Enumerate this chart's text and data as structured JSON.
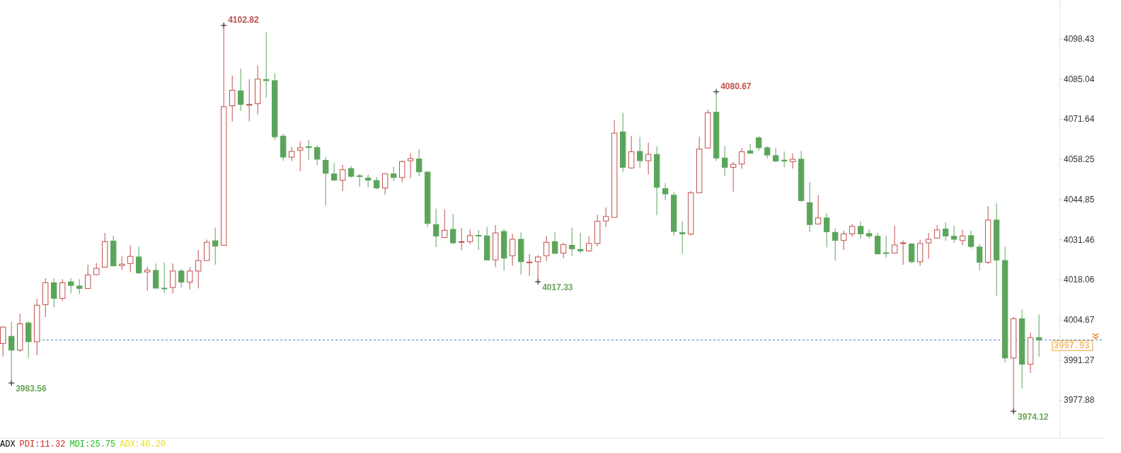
{
  "chart_data": {
    "type": "candlestick",
    "categories": [
      null,
      null,
      null,
      null,
      null,
      null,
      null,
      null,
      null,
      null,
      null,
      null,
      null,
      null,
      null,
      null,
      null,
      null,
      null,
      null,
      null,
      null,
      null,
      null,
      null,
      null,
      null,
      null,
      null,
      null,
      null,
      null,
      null,
      null,
      null,
      null,
      null,
      null,
      null,
      null,
      null,
      null,
      null,
      null,
      null,
      null,
      null,
      null,
      null,
      null,
      null,
      null,
      null,
      null,
      null,
      null,
      null,
      null,
      null,
      null,
      null,
      null,
      null,
      null,
      null,
      null,
      null,
      null,
      null,
      null,
      null,
      null,
      null,
      null,
      null,
      null,
      null,
      null,
      null,
      null,
      null,
      null,
      null,
      null,
      null,
      null,
      null,
      null,
      null,
      null,
      null,
      null,
      null,
      null,
      null,
      null,
      null,
      null,
      null,
      null,
      null,
      null,
      null,
      null,
      null,
      null,
      null,
      null,
      null,
      null,
      null,
      null,
      null,
      null,
      null,
      null,
      null,
      null,
      null,
      null,
      null,
      null,
      null
    ],
    "ohlc": [
      [
        3996.7,
        4002.4,
        3992.4,
        4002.2
      ],
      [
        3999.1,
        4004.0,
        3983.56,
        3994.5
      ],
      [
        3994.5,
        4006.7,
        3993.9,
        4003.3
      ],
      [
        4003.6,
        4004.2,
        3991.9,
        3997.3
      ],
      [
        3997.3,
        4011.6,
        3992.8,
        4009.5
      ],
      [
        4009.7,
        4018.5,
        4005.6,
        4017.0
      ],
      [
        4017.0,
        4018.5,
        4008.7,
        4011.8
      ],
      [
        4011.8,
        4018.2,
        4010.9,
        4017.0
      ],
      [
        4017.3,
        4018.5,
        4013.4,
        4016.1
      ],
      [
        4015.9,
        4018.2,
        4013.2,
        4015.1
      ],
      [
        4015.1,
        4023.0,
        4015.1,
        4019.6
      ],
      [
        4019.7,
        4023.6,
        4019.5,
        4021.8
      ],
      [
        4022.2,
        4033.6,
        4022.2,
        4030.7
      ],
      [
        4030.9,
        4032.7,
        4022.6,
        4022.6
      ],
      [
        4022.7,
        4025.8,
        4021.3,
        4023.2
      ],
      [
        4023.4,
        4029.5,
        4020.5,
        4025.8
      ],
      [
        4025.6,
        4029.1,
        4019.9,
        4020.3
      ],
      [
        4020.6,
        4022.4,
        4014.4,
        4021.2
      ],
      [
        4021.1,
        4023.4,
        4015.2,
        4015.2
      ],
      [
        4015.2,
        4023.8,
        4013.6,
        4015.0
      ],
      [
        4015.4,
        4023.4,
        4013.4,
        4020.9
      ],
      [
        4020.9,
        4021.6,
        4015.4,
        4017.2
      ],
      [
        4017.2,
        4022.2,
        4014.7,
        4020.9
      ],
      [
        4020.9,
        4027.9,
        4015.1,
        4024.4
      ],
      [
        4024.4,
        4031.4,
        4024.4,
        4030.5
      ],
      [
        4031.0,
        4035.4,
        4023.0,
        4029.2
      ],
      [
        4029.5,
        4102.82,
        4029.5,
        4075.7
      ],
      [
        4076.0,
        4086.1,
        4070.8,
        4081.2
      ],
      [
        4081.0,
        4088.4,
        4074.3,
        4076.5
      ],
      [
        4076.2,
        4084.9,
        4070.8,
        4076.5
      ],
      [
        4076.7,
        4089.5,
        4073.2,
        4084.9
      ],
      [
        4084.8,
        4100.6,
        4078.7,
        4084.4
      ],
      [
        4084.4,
        4086.9,
        4064.7,
        4065.7
      ],
      [
        4065.9,
        4066.7,
        4057.7,
        4058.9
      ],
      [
        4058.9,
        4062.3,
        4057.6,
        4060.8
      ],
      [
        4061.2,
        4064.2,
        4054.2,
        4062.0
      ],
      [
        4062.4,
        4064.7,
        4058.0,
        4062.1
      ],
      [
        4062.1,
        4062.9,
        4056.3,
        4058.2
      ],
      [
        4057.8,
        4058.9,
        4042.7,
        4053.5
      ],
      [
        4053.3,
        4056.9,
        4051.2,
        4051.2
      ],
      [
        4051.2,
        4056.3,
        4047.6,
        4054.7
      ],
      [
        4055.1,
        4055.9,
        4052.0,
        4052.5
      ],
      [
        4052.7,
        4053.3,
        4049.0,
        4052.4
      ],
      [
        4051.9,
        4053.1,
        4048.8,
        4051.2
      ],
      [
        4051.1,
        4052.3,
        4048.2,
        4048.6
      ],
      [
        4048.6,
        4053.5,
        4046.4,
        4053.3
      ],
      [
        4053.3,
        4055.7,
        4050.9,
        4052.1
      ],
      [
        4052.1,
        4057.8,
        4050.6,
        4057.4
      ],
      [
        4057.7,
        4060.2,
        4051.9,
        4058.4
      ],
      [
        4058.3,
        4061.6,
        4052.5,
        4054.0
      ],
      [
        4053.9,
        4054.3,
        4035.6,
        4036.8
      ],
      [
        4036.4,
        4041.7,
        4028.9,
        4032.6
      ],
      [
        4032.1,
        4041.5,
        4031.9,
        4034.5
      ],
      [
        4034.8,
        4039.9,
        4029.9,
        4030.3
      ],
      [
        4030.5,
        4035.2,
        4027.9,
        4030.7
      ],
      [
        4030.7,
        4034.8,
        4029.9,
        4032.7
      ],
      [
        4032.8,
        4034.6,
        4027.9,
        4032.6
      ],
      [
        4032.6,
        4035.6,
        4024.6,
        4024.6
      ],
      [
        4024.6,
        4036.2,
        4022.2,
        4033.6
      ],
      [
        4034.1,
        4034.9,
        4021.1,
        4025.2
      ],
      [
        4026.0,
        4033.3,
        4022.7,
        4031.5
      ],
      [
        4031.5,
        4033.8,
        4019.7,
        4024.0
      ],
      [
        4023.8,
        4026.6,
        4019.3,
        4023.9
      ],
      [
        4024.0,
        4026.2,
        4017.33,
        4025.6
      ],
      [
        4026.0,
        4032.6,
        4024.2,
        4030.5
      ],
      [
        4030.7,
        4033.8,
        4026.6,
        4026.8
      ],
      [
        4026.9,
        4030.3,
        4025.2,
        4029.7
      ],
      [
        4029.5,
        4035.4,
        4026.0,
        4028.3
      ],
      [
        4028.1,
        4033.6,
        4026.8,
        4027.6
      ],
      [
        4027.6,
        4032.5,
        4027.4,
        4030.1
      ],
      [
        4030.1,
        4039.7,
        4029.1,
        4037.5
      ],
      [
        4037.6,
        4042.1,
        4035.6,
        4039.1
      ],
      [
        4038.8,
        4071.2,
        4038.8,
        4066.9
      ],
      [
        4067.3,
        4073.7,
        4053.9,
        4055.5
      ],
      [
        4055.3,
        4065.9,
        4055.0,
        4060.7
      ],
      [
        4060.8,
        4065.6,
        4055.3,
        4057.7
      ],
      [
        4057.7,
        4063.7,
        4053.1,
        4059.8
      ],
      [
        4059.8,
        4062.5,
        4039.5,
        4048.8
      ],
      [
        4048.4,
        4050.2,
        4044.5,
        4046.6
      ],
      [
        4046.2,
        4047.4,
        4032.7,
        4034.1
      ],
      [
        4033.7,
        4037.6,
        4026.6,
        4033.3
      ],
      [
        4033.2,
        4047.6,
        4032.7,
        4047.0
      ],
      [
        4047.0,
        4065.7,
        4047.0,
        4061.6
      ],
      [
        4061.9,
        4074.7,
        4061.9,
        4073.7
      ],
      [
        4073.9,
        4080.67,
        4057.6,
        4058.6
      ],
      [
        4058.6,
        4062.6,
        4052.5,
        4055.5
      ],
      [
        4055.5,
        4057.3,
        4047.4,
        4056.5
      ],
      [
        4056.6,
        4062.0,
        4055.0,
        4060.7
      ],
      [
        4061.0,
        4063.3,
        4060.2,
        4060.2
      ],
      [
        4065.3,
        4065.9,
        4061.0,
        4062.0
      ],
      [
        4062.0,
        4062.5,
        4058.4,
        4059.6
      ],
      [
        4059.4,
        4062.0,
        4057.2,
        4057.6
      ],
      [
        4057.9,
        4060.8,
        4055.5,
        4057.6
      ],
      [
        4057.4,
        4060.2,
        4055.1,
        4058.2
      ],
      [
        4058.2,
        4061.0,
        4043.9,
        4044.4
      ],
      [
        4043.7,
        4050.6,
        4033.8,
        4036.4
      ],
      [
        4036.6,
        4046.2,
        4036.4,
        4038.6
      ],
      [
        4038.6,
        4040.1,
        4028.8,
        4034.0
      ],
      [
        4033.8,
        4035.2,
        4024.4,
        4031.1
      ],
      [
        4031.1,
        4034.4,
        4027.9,
        4033.3
      ],
      [
        4033.3,
        4036.6,
        4032.3,
        4035.8
      ],
      [
        4035.8,
        4037.4,
        4031.7,
        4033.3
      ],
      [
        4033.4,
        4034.9,
        4031.7,
        4032.6
      ],
      [
        4032.5,
        4033.6,
        4026.5,
        4026.6
      ],
      [
        4027.0,
        4032.7,
        4025.4,
        4026.8
      ],
      [
        4026.9,
        4036.0,
        4026.9,
        4029.6
      ],
      [
        4030.1,
        4031.1,
        4023.0,
        4030.3
      ],
      [
        4029.9,
        4030.3,
        4023.5,
        4024.0
      ],
      [
        4024.0,
        4031.4,
        4022.7,
        4030.1
      ],
      [
        4030.3,
        4033.6,
        4025.0,
        4031.5
      ],
      [
        4031.9,
        4036.2,
        4031.9,
        4034.6
      ],
      [
        4034.9,
        4037.2,
        4030.9,
        4032.6
      ],
      [
        4032.5,
        4036.0,
        4030.3,
        4031.5
      ],
      [
        4031.1,
        4034.6,
        4029.5,
        4032.6
      ],
      [
        4032.7,
        4034.4,
        4028.4,
        4029.1
      ],
      [
        4028.9,
        4029.9,
        4021.1,
        4023.8
      ],
      [
        4023.8,
        4042.5,
        4023.2,
        4037.9
      ],
      [
        4037.9,
        4043.5,
        4012.6,
        4024.6
      ],
      [
        4024.4,
        4029.1,
        3990.4,
        3991.9
      ],
      [
        3991.9,
        4005.6,
        3974.12,
        4005.0
      ],
      [
        4005.0,
        4008.1,
        3981.7,
        3989.8
      ],
      [
        3989.8,
        4000.4,
        3986.9,
        3998.7
      ],
      [
        3998.7,
        4006.4,
        3992.3,
        3997.93
      ]
    ],
    "colors": [
      "#c0504d",
      "#5ba55b",
      "#c0504d",
      "#5ba55b",
      "#c0504d",
      "#c0504d",
      "#5ba55b",
      "#c0504d",
      "#5ba55b",
      "#5ba55b",
      "#c0504d",
      "#c0504d",
      "#c0504d",
      "#5ba55b",
      "#c0504d",
      "#c0504d",
      "#5ba55b",
      "#c0504d",
      "#5ba55b",
      "#5ba55b",
      "#c0504d",
      "#5ba55b",
      "#c0504d",
      "#c0504d",
      "#c0504d",
      "#5ba55b",
      "#c0504d",
      "#c0504d",
      "#5ba55b",
      "#c0504d",
      "#c0504d",
      "#5ba55b",
      "#5ba55b",
      "#5ba55b",
      "#c0504d",
      "#c0504d",
      "#5ba55b",
      "#5ba55b",
      "#5ba55b",
      "#5ba55b",
      "#c0504d",
      "#5ba55b",
      "#5ba55b",
      "#5ba55b",
      "#5ba55b",
      "#c0504d",
      "#5ba55b",
      "#c0504d",
      "#c0504d",
      "#5ba55b",
      "#5ba55b",
      "#5ba55b",
      "#c0504d",
      "#5ba55b",
      "#c0504d",
      "#c0504d",
      "#5ba55b",
      "#5ba55b",
      "#c0504d",
      "#5ba55b",
      "#c0504d",
      "#5ba55b",
      "#c0504d",
      "#c0504d",
      "#c0504d",
      "#5ba55b",
      "#c0504d",
      "#5ba55b",
      "#5ba55b",
      "#c0504d",
      "#c0504d",
      "#c0504d",
      "#c0504d",
      "#5ba55b",
      "#c0504d",
      "#5ba55b",
      "#c0504d",
      "#5ba55b",
      "#5ba55b",
      "#5ba55b",
      "#5ba55b",
      "#c0504d",
      "#c0504d",
      "#c0504d",
      "#5ba55b",
      "#5ba55b",
      "#c0504d",
      "#c0504d",
      "#5ba55b",
      "#5ba55b",
      "#5ba55b",
      "#5ba55b",
      "#5ba55b",
      "#c0504d",
      "#5ba55b",
      "#5ba55b",
      "#c0504d",
      "#5ba55b",
      "#5ba55b",
      "#c0504d",
      "#c0504d",
      "#5ba55b",
      "#5ba55b",
      "#5ba55b",
      "#5ba55b",
      "#c0504d",
      "#c0504d",
      "#5ba55b",
      "#c0504d",
      "#c0504d",
      "#c0504d",
      "#5ba55b",
      "#5ba55b",
      "#c0504d",
      "#5ba55b",
      "#5ba55b",
      "#c0504d",
      "#5ba55b",
      "#5ba55b",
      "#c0504d",
      "#5ba55b",
      "#c0504d",
      "#5ba55b"
    ],
    "ylim": [
      3965.4,
      4111.3
    ],
    "yticks": [
      3977.88,
      3991.27,
      4004.67,
      4018.06,
      4031.46,
      4044.85,
      4058.25,
      4071.64,
      4085.04,
      4098.43
    ],
    "ref_lines": [
      {
        "axis": "y",
        "value": 3997.93,
        "label": "3997.93",
        "color": "#3a7fd0",
        "line_style": "dashed"
      }
    ],
    "annotations": [
      "4102.82",
      "3983.56",
      "4017.33",
      "4080.67",
      "3974.12",
      "ADX",
      "PDI:11.32",
      "MDI:25.75",
      "ADX:46.20"
    ]
  }
}
